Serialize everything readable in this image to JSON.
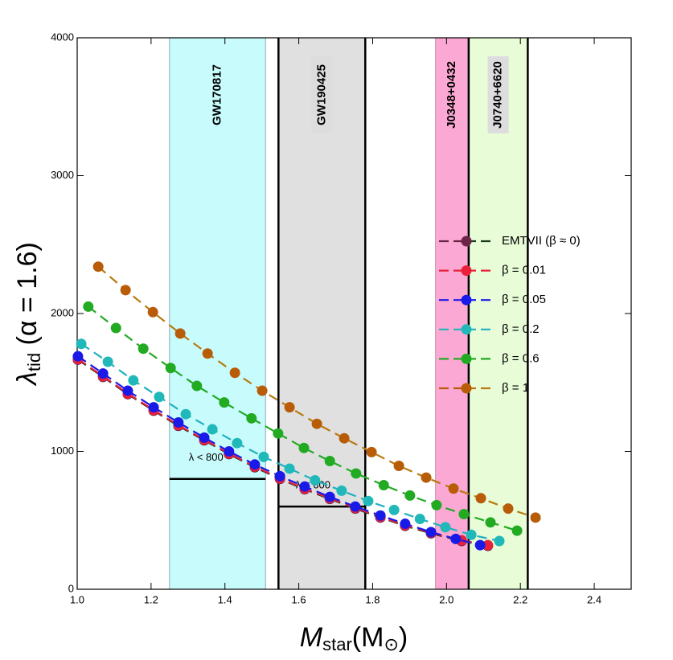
{
  "chart_data": {
    "type": "line",
    "xlabel": {
      "main": "M",
      "sub": "star",
      "rest": "(M",
      "sun": "⊙",
      "end": ")"
    },
    "ylabel": {
      "main": "λ",
      "sub": "tid",
      "rest": " (α = 1.6)"
    },
    "xlim": [
      1.0,
      2.5
    ],
    "ylim": [
      0,
      4000
    ],
    "xticks": [
      {
        "value": 1.0,
        "label": "1.0"
      },
      {
        "value": 1.2,
        "label": "1.2"
      },
      {
        "value": 1.4,
        "label": "1.4"
      },
      {
        "value": 1.6,
        "label": "1.6"
      },
      {
        "value": 1.8,
        "label": "1.8"
      },
      {
        "value": 2.0,
        "label": "2.0"
      },
      {
        "value": 2.2,
        "label": "2.2"
      },
      {
        "value": 2.4,
        "label": "2.4"
      }
    ],
    "yticks": [
      0,
      1000,
      2000,
      3000,
      4000
    ],
    "bands": [
      {
        "name": "GW170817",
        "x": [
          1.25,
          1.51
        ],
        "color": "#c8fcfc",
        "edge_color": "#8ab",
        "limit": 800,
        "limit_label": "λ < 800",
        "label_box": false
      },
      {
        "name": "GW190425",
        "x": [
          1.545,
          1.78
        ],
        "color": "#e0e0e0",
        "edge_color": "#000",
        "limit": 600,
        "limit_label": "λ < 600",
        "label_box": true
      },
      {
        "name": "J0348+0432",
        "x": [
          1.97,
          2.06
        ],
        "color": "#fca8d4",
        "edge_color": "#c9a",
        "label_box": false
      },
      {
        "name": "J0740+6620",
        "x": [
          2.06,
          2.22
        ],
        "color": "#e8fcd8",
        "edge_color": "#000",
        "label_box": true
      }
    ],
    "series": [
      {
        "name": "EMTVII (β ≈ 0)",
        "color": "#6b2447",
        "line_color": "#1a3a1a",
        "x": [
          1.002,
          1.07,
          1.137,
          1.207,
          1.274,
          1.344,
          1.411,
          1.481,
          1.549,
          1.616,
          1.684,
          1.753,
          1.821,
          1.888,
          1.958,
          2.041,
          2.112
        ],
        "values": [
          1665,
          1540,
          1415,
          1295,
          1185,
          1080,
          980,
          885,
          800,
          725,
          655,
          585,
          520,
          460,
          405,
          350,
          315
        ]
      },
      {
        "name": "β = 0.01",
        "color": "#e8203c",
        "line_color": "#e8203c",
        "x": [
          1.002,
          1.07,
          1.137,
          1.207,
          1.274,
          1.344,
          1.411,
          1.481,
          1.549,
          1.616,
          1.684,
          1.753,
          1.821,
          1.888,
          1.958,
          2.041,
          2.112
        ],
        "values": [
          1670,
          1545,
          1420,
          1300,
          1190,
          1085,
          985,
          890,
          805,
          730,
          660,
          590,
          525,
          465,
          410,
          355,
          320
        ]
      },
      {
        "name": "β = 0.05",
        "color": "#1a1ae8",
        "line_color": "#1a1ae8",
        "x": [
          1.002,
          1.07,
          1.137,
          1.207,
          1.274,
          1.344,
          1.411,
          1.481,
          1.549,
          1.616,
          1.684,
          1.753,
          1.821,
          1.888,
          1.958,
          2.025,
          2.091
        ],
        "values": [
          1690,
          1565,
          1440,
          1320,
          1210,
          1100,
          1000,
          905,
          820,
          745,
          670,
          600,
          535,
          475,
          415,
          365,
          320
        ]
      },
      {
        "name": "β = 0.2",
        "color": "#20b8b8",
        "line_color": "#20b0c0",
        "x": [
          1.011,
          1.083,
          1.152,
          1.222,
          1.294,
          1.366,
          1.433,
          1.505,
          1.575,
          1.644,
          1.716,
          1.788,
          1.858,
          1.928,
          1.997,
          2.067,
          2.143
        ],
        "values": [
          1780,
          1650,
          1515,
          1395,
          1270,
          1160,
          1060,
          960,
          875,
          790,
          715,
          640,
          575,
          510,
          450,
          395,
          350
        ]
      },
      {
        "name": "β = 0.6",
        "color": "#22aa22",
        "line_color": "#22aa22",
        "x": [
          1.03,
          1.105,
          1.179,
          1.253,
          1.324,
          1.398,
          1.472,
          1.544,
          1.614,
          1.684,
          1.755,
          1.83,
          1.901,
          1.973,
          2.047,
          2.119,
          2.191
        ],
        "values": [
          2050,
          1895,
          1745,
          1605,
          1475,
          1355,
          1240,
          1130,
          1025,
          930,
          840,
          755,
          680,
          610,
          545,
          485,
          425
        ]
      },
      {
        "name": "β = 1",
        "color": "#b85c08",
        "line_color": "#b87a10",
        "x": [
          1.057,
          1.131,
          1.205,
          1.279,
          1.353,
          1.427,
          1.501,
          1.575,
          1.649,
          1.723,
          1.797,
          1.871,
          1.945,
          2.019,
          2.093,
          2.167,
          2.241
        ],
        "values": [
          2340,
          2170,
          2010,
          1855,
          1710,
          1570,
          1440,
          1320,
          1200,
          1095,
          995,
          895,
          810,
          730,
          660,
          585,
          520
        ]
      }
    ]
  }
}
